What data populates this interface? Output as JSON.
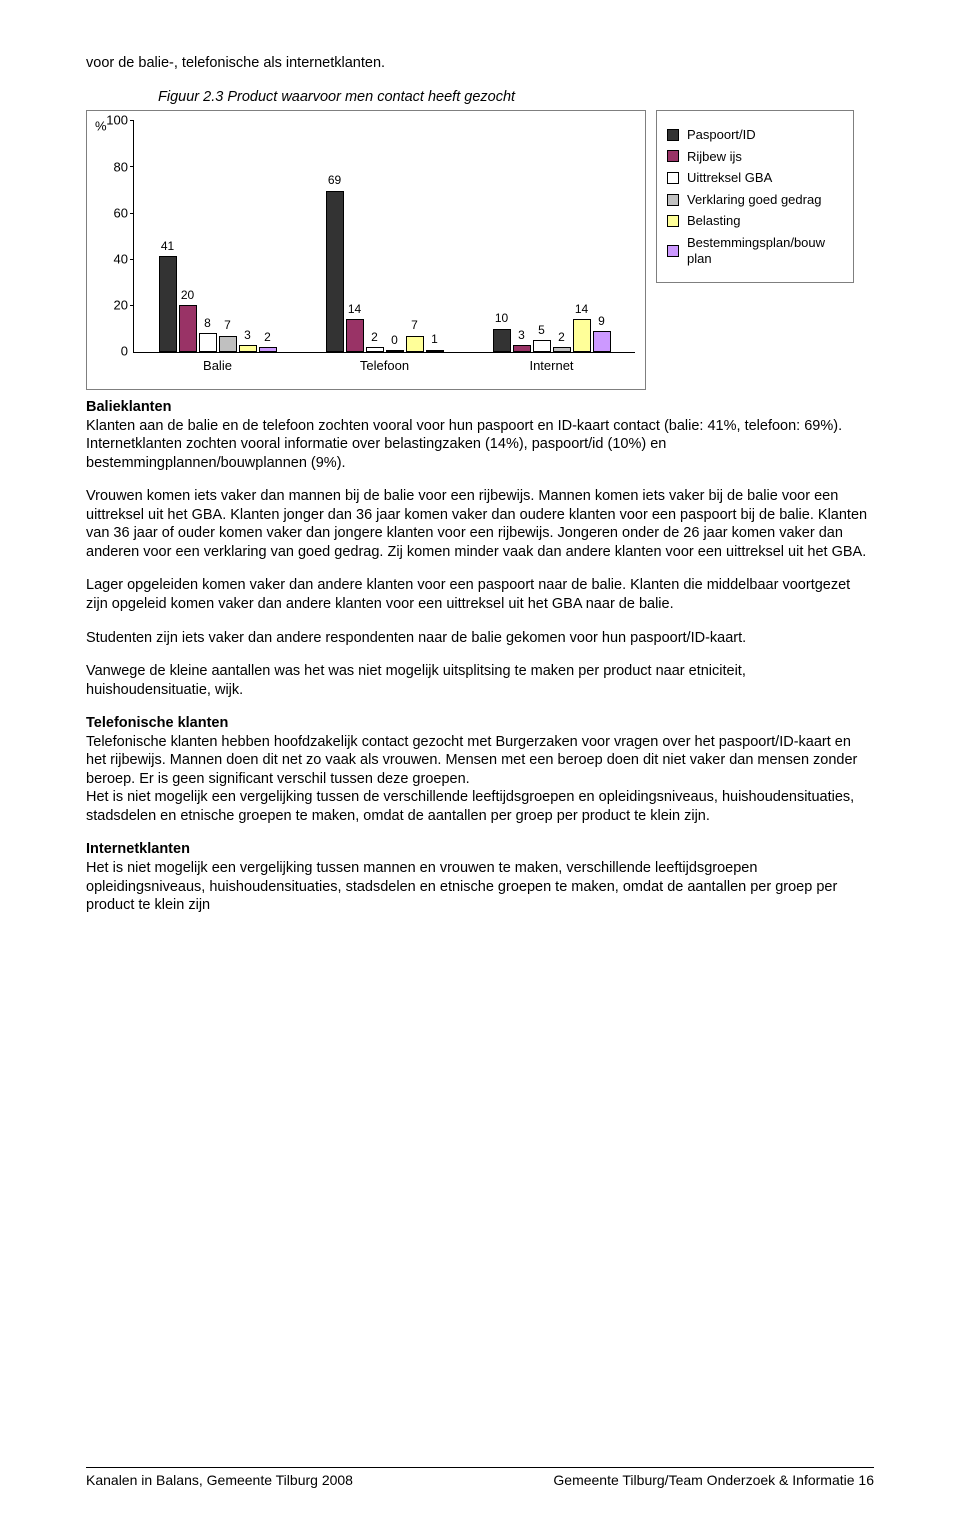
{
  "intro": "voor de balie-, telefonische als internetklanten.",
  "chart": {
    "ylabel": "%",
    "title": "Figuur 2.3    Product waarvoor men contact heeft gezocht",
    "ymax": 100,
    "ytick_step": 20,
    "yticks": [
      0,
      20,
      40,
      60,
      80,
      100
    ],
    "categories": [
      "Balie",
      "Telefoon",
      "Internet"
    ],
    "series": [
      {
        "label": "Paspoort/ID",
        "color": "#333333"
      },
      {
        "label": "Rijbew ijs",
        "color": "#993366"
      },
      {
        "label": "Uittreksel GBA",
        "color": "#ffffff"
      },
      {
        "label": "Verklaring goed gedrag",
        "color": "#c0c0c0"
      },
      {
        "label": "Belasting",
        "color": "#ffff99"
      },
      {
        "label": "Bestemmingsplan/bouw plan",
        "color": "#cc99ff"
      }
    ],
    "values": [
      [
        41,
        20,
        8,
        7,
        3,
        2
      ],
      [
        69,
        14,
        2,
        0,
        7,
        1
      ],
      [
        10,
        3,
        5,
        2,
        14,
        9
      ]
    ]
  },
  "sections": [
    {
      "heading": "Balieklanten",
      "paragraphs": [
        "Klanten aan de balie en de telefoon zochten vooral voor hun paspoort en ID-kaart contact (balie: 41%, telefoon: 69%). Internetklanten zochten vooral informatie over belastingzaken (14%), paspoort/id (10%) en bestemmingplannen/bouwplannen (9%).",
        "Vrouwen komen iets vaker dan mannen bij de balie voor een rijbewijs. Mannen komen iets vaker bij de balie voor een uittreksel uit het GBA. Klanten jonger dan 36 jaar komen vaker dan oudere klanten voor een paspoort bij de balie. Klanten van 36 jaar of ouder komen vaker dan jongere klanten voor een rijbewijs. Jongeren onder de 26 jaar komen vaker dan anderen voor een verklaring van goed gedrag. Zij komen minder vaak dan andere klanten voor een uittreksel uit het GBA.",
        "Lager opgeleiden komen vaker dan andere klanten voor een paspoort naar de balie. Klanten die middelbaar voortgezet zijn opgeleid komen vaker dan andere klanten voor een uittreksel uit het GBA naar de balie.",
        "Studenten zijn iets vaker dan andere respondenten naar de balie gekomen voor hun paspoort/ID-kaart.",
        "Vanwege de kleine aantallen was het was niet mogelijk uitsplitsing te maken per product naar etniciteit, huishoudensituatie, wijk."
      ]
    },
    {
      "heading": "Telefonische klanten",
      "paragraphs": [
        "Telefonische klanten hebben hoofdzakelijk contact gezocht met Burgerzaken voor vragen over het paspoort/ID-kaart en het rijbewijs. Mannen doen dit net zo vaak als vrouwen. Mensen met een beroep doen dit niet vaker dan mensen zonder beroep. Er is geen significant verschil tussen deze groepen.\nHet is niet mogelijk een vergelijking tussen de verschillende leeftijdsgroepen en opleidingsniveaus, huishoudensituaties, stadsdelen en etnische groepen te maken, omdat de aantallen per groep per product te klein zijn."
      ]
    },
    {
      "heading": "Internetklanten",
      "paragraphs": [
        "Het is niet mogelijk een vergelijking tussen mannen en vrouwen te maken, verschillende leeftijdsgroepen opleidingsniveaus, huishoudensituaties, stadsdelen en etnische groepen te maken, omdat de aantallen per groep per product te klein zijn"
      ]
    }
  ],
  "footer": {
    "left": "Kanalen in Balans, Gemeente Tilburg 2008",
    "right": "Gemeente Tilburg/Team Onderzoek & Informatie   16"
  }
}
